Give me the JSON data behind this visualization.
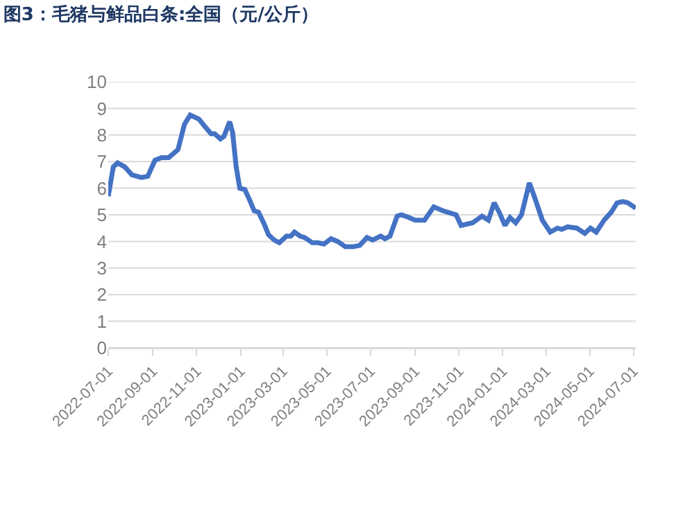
{
  "chart_data": {
    "type": "line",
    "title": "图3：毛猪与鲜品白条:全国（元/公斤）",
    "x": [
      "2022-07-01",
      "2022-07-08",
      "2022-07-14",
      "2022-07-24",
      "2022-08-03",
      "2022-08-16",
      "2022-08-25",
      "2022-09-04",
      "2022-09-13",
      "2022-09-23",
      "2022-10-06",
      "2022-10-15",
      "2022-10-23",
      "2022-11-04",
      "2022-11-13",
      "2022-11-21",
      "2022-11-26",
      "2022-12-04",
      "2022-12-09",
      "2022-12-17",
      "2022-12-21",
      "2022-12-26",
      "2022-12-31",
      "2023-01-07",
      "2023-01-13",
      "2023-01-20",
      "2023-01-26",
      "2023-02-03",
      "2023-02-09",
      "2023-02-17",
      "2023-02-24",
      "2023-03-06",
      "2023-03-12",
      "2023-03-17",
      "2023-03-25",
      "2023-03-31",
      "2023-04-11",
      "2023-04-19",
      "2023-04-27",
      "2023-05-07",
      "2023-05-16",
      "2023-05-27",
      "2023-06-07",
      "2023-06-16",
      "2023-06-26",
      "2023-07-04",
      "2023-07-15",
      "2023-07-21",
      "2023-07-28",
      "2023-08-07",
      "2023-08-13",
      "2023-08-23",
      "2023-09-01",
      "2023-09-14",
      "2023-09-27",
      "2023-10-10",
      "2023-10-22",
      "2023-10-28",
      "2023-11-04",
      "2023-11-20",
      "2023-12-03",
      "2023-12-12",
      "2023-12-20",
      "2023-12-27",
      "2024-01-04",
      "2024-01-11",
      "2024-01-19",
      "2024-01-27",
      "2024-02-07",
      "2024-02-15",
      "2024-02-25",
      "2024-03-07",
      "2024-03-17",
      "2024-03-23",
      "2024-03-31",
      "2024-04-13",
      "2024-04-24",
      "2024-05-02",
      "2024-05-10",
      "2024-05-21",
      "2024-05-31",
      "2024-06-08",
      "2024-06-16",
      "2024-06-23",
      "2024-07-04"
    ],
    "series": [
      {
        "color": "#4472c4",
        "values": [
          5.7,
          6.8,
          6.95,
          6.8,
          6.5,
          6.4,
          6.45,
          7.05,
          7.15,
          7.15,
          7.45,
          8.4,
          8.75,
          8.6,
          8.3,
          8.05,
          8.05,
          7.85,
          7.95,
          8.5,
          8.1,
          6.8,
          6.0,
          5.95,
          5.6,
          5.15,
          5.1,
          4.65,
          4.25,
          4.05,
          3.95,
          4.2,
          4.2,
          4.35,
          4.2,
          4.15,
          3.95,
          3.95,
          3.9,
          4.1,
          4.0,
          3.8,
          3.8,
          3.85,
          4.15,
          4.05,
          4.2,
          4.1,
          4.2,
          4.95,
          5.0,
          4.9,
          4.8,
          4.8,
          5.3,
          5.15,
          5.05,
          5.0,
          4.6,
          4.7,
          4.95,
          4.8,
          5.45,
          5.1,
          4.6,
          4.9,
          4.7,
          5.0,
          6.2,
          5.6,
          4.8,
          4.35,
          4.5,
          4.45,
          4.55,
          4.5,
          4.3,
          4.5,
          4.35,
          4.8,
          5.1,
          5.45,
          5.5,
          5.45,
          5.25
        ]
      }
    ],
    "xlim": [
      "2022-07-01",
      "2024-07-04"
    ],
    "xticks": [
      "2022-07-01",
      "2022-09-01",
      "2022-11-01",
      "2023-01-01",
      "2023-03-01",
      "2023-05-01",
      "2023-07-01",
      "2023-09-01",
      "2023-11-01",
      "2024-01-01",
      "2024-03-01",
      "2024-05-01",
      "2024-07-01"
    ],
    "ylim": [
      0,
      10
    ],
    "yticks": [
      0,
      1,
      2,
      3,
      4,
      5,
      6,
      7,
      8,
      9,
      10
    ],
    "grid": "y",
    "marker": "none",
    "line_style": "solid"
  }
}
